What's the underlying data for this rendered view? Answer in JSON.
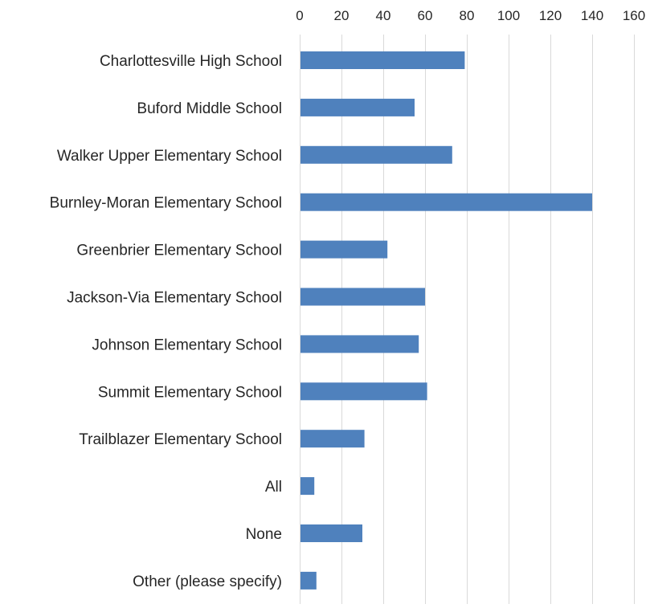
{
  "chart_data": {
    "type": "bar",
    "orientation": "horizontal",
    "title": "",
    "xlabel": "",
    "ylabel": "",
    "categories": [
      "Charlottesville High School",
      "Buford Middle School",
      "Walker Upper Elementary School",
      "Burnley-Moran Elementary School",
      "Greenbrier Elementary School",
      "Jackson-Via Elementary School",
      "Johnson Elementary School",
      "Summit Elementary School",
      "Trailblazer Elementary School",
      "All",
      "None",
      "Other (please specify)"
    ],
    "values": [
      79,
      55,
      73,
      140,
      42,
      60,
      57,
      61,
      31,
      7,
      30,
      8
    ],
    "xlim": [
      0,
      160
    ],
    "xticks": [
      "0",
      "20",
      "40",
      "60",
      "80",
      "100",
      "120",
      "140",
      "160"
    ],
    "x_axis_position": "top",
    "grid": true,
    "legend": "none",
    "bar_color": "#4f81bd",
    "grid_color": "#d9d9d9"
  }
}
